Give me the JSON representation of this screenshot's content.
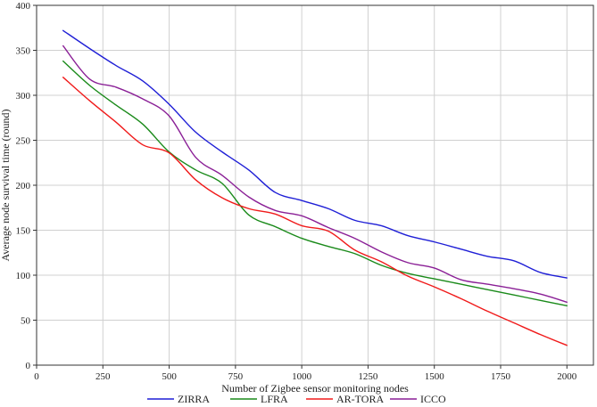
{
  "chart_data": {
    "type": "line",
    "title": "",
    "xlabel": "Number of Zigbee sensor monitoring nodes",
    "ylabel": "Average node survival time (round)",
    "xlim": [
      0,
      2100
    ],
    "ylim": [
      0,
      400
    ],
    "xticks": [
      0,
      250,
      500,
      750,
      1000,
      1250,
      1500,
      1750,
      2000
    ],
    "yticks": [
      0,
      50,
      100,
      150,
      200,
      250,
      300,
      350,
      400
    ],
    "grid": true,
    "legend_position": "bottom",
    "x": [
      100,
      200,
      300,
      400,
      500,
      600,
      700,
      800,
      900,
      1000,
      1100,
      1200,
      1300,
      1400,
      1500,
      1600,
      1700,
      1800,
      1900,
      2000
    ],
    "series": [
      {
        "name": "ZIRRA",
        "color": "#1f1fd6",
        "values": [
          372,
          352,
          333,
          316,
          290,
          259,
          237,
          217,
          192,
          183,
          174,
          161,
          155,
          144,
          137,
          129,
          121,
          116,
          103,
          97
        ]
      },
      {
        "name": "LFRA",
        "color": "#1a8a1a",
        "values": [
          338,
          311,
          289,
          268,
          237,
          217,
          202,
          167,
          154,
          141,
          132,
          124,
          111,
          102,
          96,
          90,
          84,
          78,
          72,
          66
        ]
      },
      {
        "name": "AR-TORA",
        "color": "#f01a1a",
        "values": [
          320,
          294,
          270,
          245,
          236,
          206,
          186,
          174,
          168,
          155,
          149,
          128,
          115,
          99,
          87,
          74,
          60,
          47,
          34,
          22
        ]
      },
      {
        "name": "ICCO",
        "color": "#8a1f96",
        "values": [
          355,
          318,
          309,
          296,
          277,
          231,
          211,
          187,
          172,
          166,
          153,
          141,
          126,
          114,
          108,
          95,
          90,
          85,
          79,
          70
        ]
      }
    ]
  }
}
